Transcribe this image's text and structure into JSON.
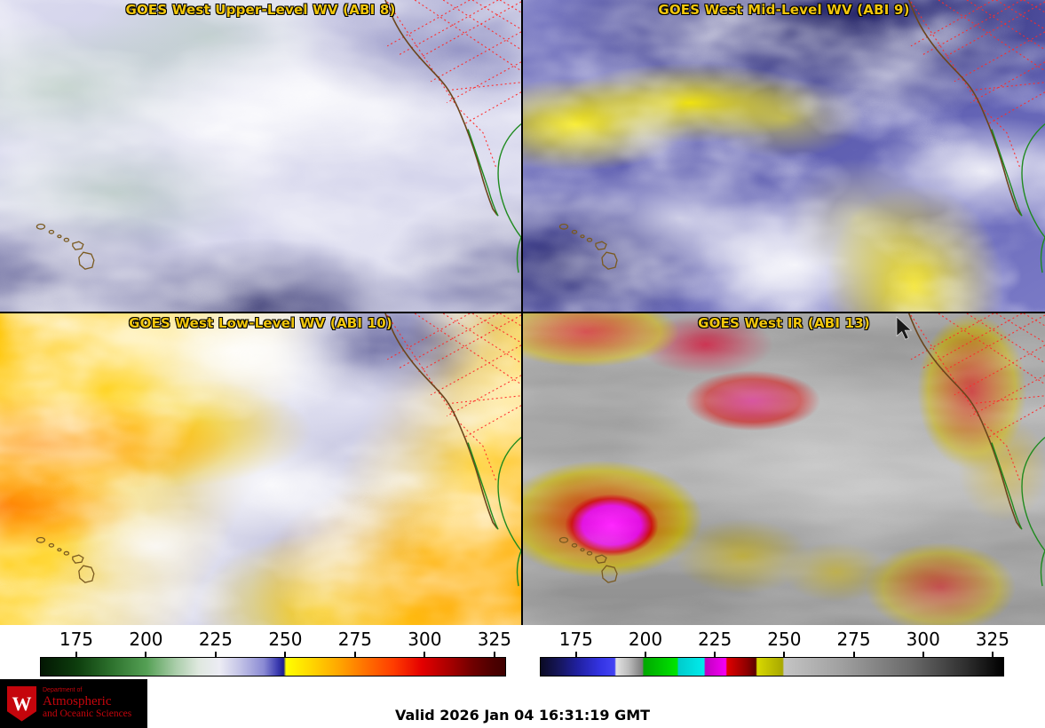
{
  "page": {
    "name": "GOES West Quad Panel Satellite Display"
  },
  "panel_title_color": "#f2c70c",
  "panels": [
    {
      "id": "abi8",
      "title": "GOES West Upper-Level WV (ABI 8)"
    },
    {
      "id": "abi9",
      "title": "GOES West Mid-Level WV (ABI 9)"
    },
    {
      "id": "abi10",
      "title": "GOES West Low-Level WV (ABI 10)"
    },
    {
      "id": "abi13",
      "title": "GOES West IR (ABI 13)"
    }
  ],
  "colorbars": [
    {
      "name": "water-vapor-brightness-temperature-scale",
      "units": "K",
      "ticks": [
        "175",
        "200",
        "225",
        "250",
        "275",
        "300",
        "325"
      ],
      "tick_start_pct": 7.8,
      "tick_step_pct": 14.95,
      "stops": [
        [
          0,
          "#031703"
        ],
        [
          7.8,
          "#0d3d0d"
        ],
        [
          15,
          "#2c702c"
        ],
        [
          22.8,
          "#55a055"
        ],
        [
          29,
          "#a9cda9"
        ],
        [
          34,
          "#dfe8df"
        ],
        [
          38.5,
          "#ececf4"
        ],
        [
          43,
          "#c2c2e6"
        ],
        [
          48,
          "#8b8bd4"
        ],
        [
          51,
          "#3c3cb0"
        ],
        [
          52.3,
          "#1c1c8e"
        ],
        [
          52.8,
          "#ffff00"
        ],
        [
          58,
          "#ffd800"
        ],
        [
          64,
          "#ffa800"
        ],
        [
          70,
          "#ff7000"
        ],
        [
          76,
          "#ff3c00"
        ],
        [
          82,
          "#e40000"
        ],
        [
          88,
          "#a80000"
        ],
        [
          93,
          "#700000"
        ],
        [
          97.5,
          "#4c0000"
        ],
        [
          100,
          "#400000"
        ]
      ]
    },
    {
      "name": "infrared-brightness-temperature-scale",
      "units": "K",
      "ticks": [
        "175",
        "200",
        "225",
        "250",
        "275",
        "300",
        "325"
      ],
      "tick_start_pct": 7.8,
      "tick_step_pct": 14.95,
      "stops": [
        [
          0,
          "#0a0a24"
        ],
        [
          4,
          "#16165c"
        ],
        [
          8,
          "#2020a0"
        ],
        [
          13,
          "#3434e4"
        ],
        [
          16,
          "#4444f4"
        ],
        [
          16.3,
          "#e2e2e2"
        ],
        [
          19,
          "#bcbcbc"
        ],
        [
          22,
          "#7c7c7c"
        ],
        [
          22.3,
          "#00a800"
        ],
        [
          29.5,
          "#00e400"
        ],
        [
          29.8,
          "#00cccc"
        ],
        [
          35.3,
          "#00ecec"
        ],
        [
          35.6,
          "#c000c0"
        ],
        [
          40,
          "#f400f4"
        ],
        [
          40.3,
          "#e00000"
        ],
        [
          44.5,
          "#900000"
        ],
        [
          46.5,
          "#5c0000"
        ],
        [
          46.8,
          "#d8d800"
        ],
        [
          52.3,
          "#a8a800"
        ],
        [
          52.6,
          "#c4c4c4"
        ],
        [
          65,
          "#a0a0a0"
        ],
        [
          80,
          "#6a6a6a"
        ],
        [
          92,
          "#2e2e2e"
        ],
        [
          100,
          "#000000"
        ]
      ]
    }
  ],
  "logo": {
    "name": "UW-Madison Department of Atmospheric and Oceanic Sciences",
    "crest_letter": "W",
    "dept_line": "Department of",
    "line1": "Atmospheric",
    "line2": "and Oceanic Sciences",
    "bg_color": "#000000",
    "red": "#c5050c"
  },
  "footer": {
    "valid_time": "Valid 2026 Jan 04 16:31:19 GMT"
  }
}
